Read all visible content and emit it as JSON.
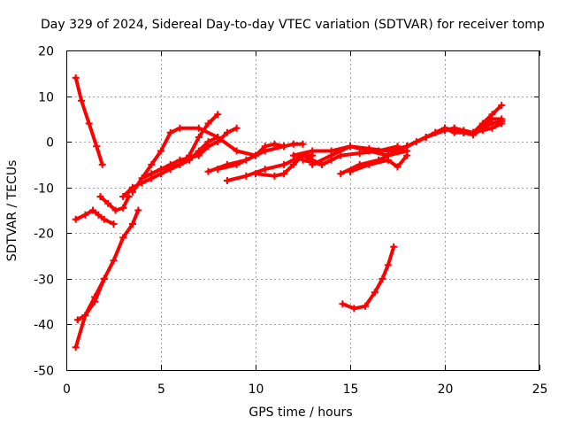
{
  "chart_data": {
    "type": "line",
    "title": "Day 329 of 2024, Sidereal Day-to-day VTEC variation (SDTVAR) for receiver tomp",
    "xlabel": "GPS time / hours",
    "ylabel": "SDTVAR / TECUs",
    "xlim": [
      0,
      25
    ],
    "ylim": [
      -50,
      20
    ],
    "xticks": [
      "0",
      "5",
      "10",
      "15",
      "20",
      "25"
    ],
    "yticks": [
      "20",
      "10",
      "0",
      "-10",
      "-20",
      "-30",
      "-40",
      "-50"
    ],
    "grid": true,
    "color": "#ff0000",
    "series": [
      {
        "name": "s1",
        "x": [
          0.5,
          0.8,
          1.2,
          1.6,
          1.9
        ],
        "y": [
          14,
          9,
          4,
          -1,
          -5
        ]
      },
      {
        "name": "s2",
        "x": [
          0.5,
          1.0,
          1.4,
          1.7,
          2.0,
          2.5
        ],
        "y": [
          -17,
          -16,
          -15,
          -16,
          -17,
          -18
        ]
      },
      {
        "name": "s3",
        "x": [
          1.8,
          2.2,
          2.6,
          3.0,
          3.3
        ],
        "y": [
          -12,
          -13.5,
          -15,
          -14.5,
          -12
        ]
      },
      {
        "name": "s4",
        "x": [
          0.5,
          1.0,
          1.5,
          2.0,
          2.5,
          3.0,
          3.5,
          3.8
        ],
        "y": [
          -45,
          -38,
          -34,
          -30,
          -26,
          -21,
          -18,
          -15
        ]
      },
      {
        "name": "s5",
        "x": [
          0.6,
          1.0,
          1.5,
          2.0
        ],
        "y": [
          -39,
          -38,
          -35,
          -30
        ]
      },
      {
        "name": "s6",
        "x": [
          3.0,
          3.5,
          4.0,
          4.5,
          5.0,
          5.5,
          6.0,
          6.5,
          7.0,
          7.5,
          8.0
        ],
        "y": [
          -12,
          -10,
          -9,
          -8,
          -7,
          -6,
          -5,
          -4,
          -2,
          0,
          1
        ]
      },
      {
        "name": "s7",
        "x": [
          3.5,
          4.0,
          4.5,
          5.0,
          5.5,
          6.0,
          7.0,
          8.0,
          9.0,
          10.0
        ],
        "y": [
          -11,
          -8,
          -5,
          -2,
          2,
          3,
          3,
          1,
          -2,
          -3
        ]
      },
      {
        "name": "s8",
        "x": [
          4.0,
          5.0,
          6.0,
          6.5,
          7.0,
          7.5,
          8.0
        ],
        "y": [
          -8,
          -6,
          -5,
          -3,
          1,
          4,
          6
        ]
      },
      {
        "name": "s9",
        "x": [
          4.5,
          5.5,
          6.0,
          7.0,
          7.5,
          8.0,
          8.5,
          9.0
        ],
        "y": [
          -7,
          -5,
          -4,
          -3,
          -1,
          0,
          2,
          3
        ]
      },
      {
        "name": "s10",
        "x": [
          7.5,
          8.5,
          9.5,
          10.5,
          11.5,
          12.0,
          12.5
        ],
        "y": [
          -6.5,
          -5,
          -4,
          -2,
          -1,
          -0.5,
          -0.5
        ]
      },
      {
        "name": "s11",
        "x": [
          8.0,
          9.0,
          10.0,
          10.5,
          11.0,
          11.5
        ],
        "y": [
          -6,
          -5,
          -3,
          -1,
          -0.5,
          -1
        ]
      },
      {
        "name": "s12",
        "x": [
          8.5,
          9.5,
          10.5,
          11.5,
          12.0,
          12.5,
          13.0
        ],
        "y": [
          -8.5,
          -7.5,
          -6,
          -5,
          -4,
          -3,
          -3
        ]
      },
      {
        "name": "s13",
        "x": [
          10.0,
          11.0,
          11.5,
          12.0,
          12.5,
          13.0,
          13.5,
          14.0
        ],
        "y": [
          -7,
          -7.5,
          -7,
          -5,
          -3,
          -4,
          -5,
          -4
        ]
      },
      {
        "name": "s14",
        "x": [
          12.0,
          13.0,
          14.0,
          15.0,
          16.0,
          17.0,
          18.0
        ],
        "y": [
          -3,
          -2,
          -2,
          -1,
          -2,
          -3,
          -2
        ]
      },
      {
        "name": "s15",
        "x": [
          12.5,
          13.5,
          14.5,
          15.5,
          16.5,
          17.5
        ],
        "y": [
          -4,
          -5,
          -3,
          -2.5,
          -2,
          -1
        ]
      },
      {
        "name": "s16",
        "x": [
          13.0,
          14.0,
          15.0,
          16.0,
          17.0,
          18.0,
          19.0
        ],
        "y": [
          -5,
          -3,
          -1,
          -1.5,
          -2,
          -1,
          1
        ]
      },
      {
        "name": "s17",
        "x": [
          14.5,
          15.5,
          16.5,
          17.0,
          17.5,
          18.0
        ],
        "y": [
          -7,
          -5,
          -4,
          -3,
          -2,
          -1
        ]
      },
      {
        "name": "s18",
        "x": [
          15.0,
          16.0,
          17.0,
          17.5,
          18.0
        ],
        "y": [
          -6.5,
          -5,
          -4,
          -5.5,
          -3
        ]
      },
      {
        "name": "s19",
        "x": [
          17.0,
          18.0,
          18.5,
          19.0,
          19.5,
          20.0,
          20.5,
          21.0
        ],
        "y": [
          -3,
          -1,
          0,
          1,
          2,
          3,
          2,
          2
        ]
      },
      {
        "name": "s20",
        "x": [
          18.0,
          19.0,
          20.0,
          21.0,
          21.5,
          22.0,
          22.5,
          23.0
        ],
        "y": [
          -1,
          1,
          3,
          2,
          1.5,
          3,
          4,
          4.5
        ]
      },
      {
        "name": "s21",
        "x": [
          19.0,
          20.0,
          20.5,
          21.0,
          21.5,
          22.0,
          22.5,
          23.0
        ],
        "y": [
          1,
          2.5,
          3,
          2,
          2,
          3,
          5,
          5
        ]
      },
      {
        "name": "s22",
        "x": [
          20.0,
          21.0,
          21.5,
          22.0,
          22.5,
          23.0
        ],
        "y": [
          3,
          2,
          2,
          4,
          6,
          8
        ]
      },
      {
        "name": "s23",
        "x": [
          19.5,
          20.5,
          21.0,
          21.5,
          22.0,
          22.5,
          23.0
        ],
        "y": [
          2,
          3,
          2.5,
          2,
          2.5,
          3,
          4
        ]
      },
      {
        "name": "s24",
        "x": [
          14.6,
          15.2,
          15.8,
          16.3,
          16.7,
          17.0,
          17.3
        ],
        "y": [
          -35.5,
          -36.5,
          -36,
          -33,
          -30,
          -27,
          -23
        ]
      }
    ]
  }
}
